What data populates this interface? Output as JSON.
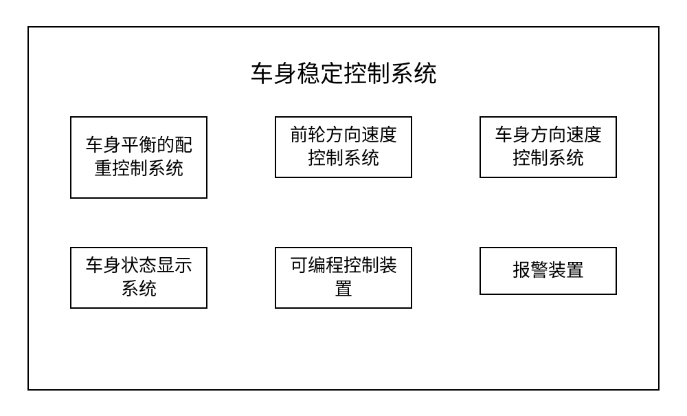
{
  "diagram": {
    "type": "block-diagram",
    "title": "车身稳定控制系统",
    "title_fontsize": 34,
    "background_color": "#ffffff",
    "border_color": "#000000",
    "border_width": 2,
    "font_family": "SimSun",
    "box_fontsize": 26,
    "rows": [
      {
        "boxes": [
          {
            "label": "车身平衡的配重控制系统",
            "lines": 3
          },
          {
            "label": "前轮方向速度控制系统",
            "lines": 2
          },
          {
            "label": "车身方向速度控制系统",
            "lines": 2
          }
        ]
      },
      {
        "boxes": [
          {
            "label": "车身状态显示系统",
            "lines": 2
          },
          {
            "label": "可编程控制装置",
            "lines": 2
          },
          {
            "label": "报警装置",
            "lines": 1
          }
        ]
      }
    ]
  }
}
